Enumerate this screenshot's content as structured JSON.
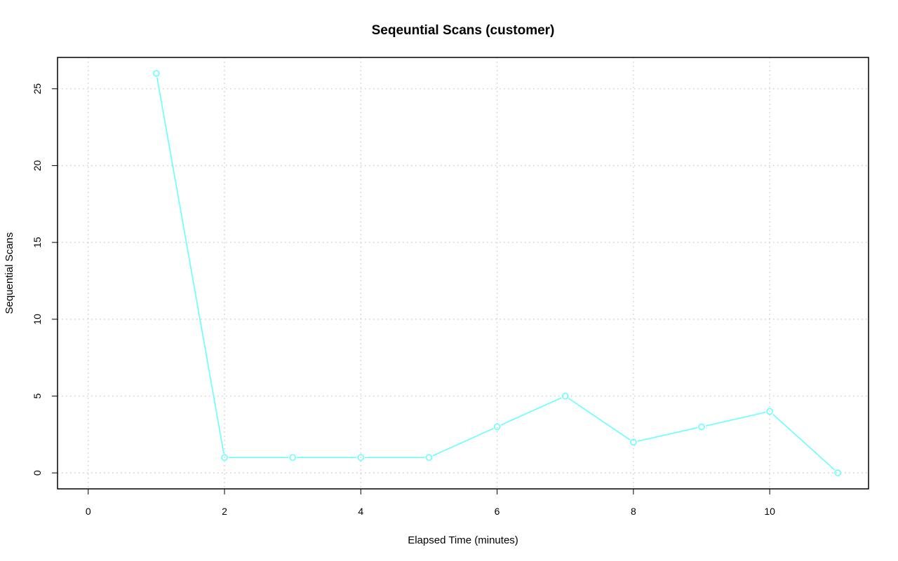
{
  "chart_data": {
    "type": "line",
    "title": "Seqeuntial Scans (customer)",
    "xlabel": "Elapsed Time (minutes)",
    "ylabel": "Sequential Scans",
    "xlim": [
      -0.45,
      11.45
    ],
    "ylim": [
      -1.04,
      27.04
    ],
    "xticks": [
      0,
      2,
      4,
      6,
      8,
      10
    ],
    "yticks": [
      0,
      5,
      10,
      15,
      20,
      25
    ],
    "grid": true,
    "series": [
      {
        "color": "#66ffff",
        "marker": "open-circle",
        "x": [
          1,
          2,
          3,
          4,
          5,
          6,
          7,
          8,
          9,
          10,
          11
        ],
        "y": [
          26,
          1,
          1,
          1,
          1,
          3,
          5,
          2,
          3,
          4,
          0
        ]
      }
    ]
  }
}
